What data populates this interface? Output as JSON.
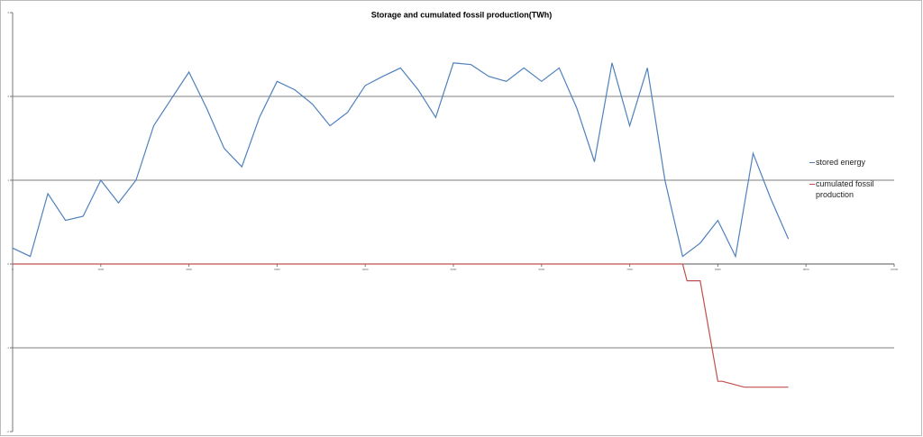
{
  "chart_data": {
    "type": "line",
    "title": "Storage and cumulated  fossil production(TWh)",
    "xlim": [
      0,
      10000
    ],
    "xticks": [
      0,
      1000,
      2000,
      3000,
      4000,
      5000,
      6000,
      7000,
      8000,
      9000,
      10000
    ],
    "ylim": [
      -2,
      3
    ],
    "yticks": [
      -2,
      -1,
      0,
      1,
      2,
      3
    ],
    "grid": true,
    "legend": "right",
    "series": [
      {
        "name": "stored energy",
        "color": "#4f81bd",
        "x": [
          0,
          200,
          400,
          600,
          800,
          1000,
          1200,
          1400,
          1600,
          1800,
          2000,
          2200,
          2400,
          2600,
          2800,
          3000,
          3200,
          3400,
          3600,
          3800,
          4000,
          4200,
          4400,
          4600,
          4800,
          5000,
          5200,
          5400,
          5600,
          5800,
          6000,
          6200,
          6400,
          6600,
          6800,
          7000,
          7200,
          7400,
          7600,
          7800,
          8000,
          8200,
          8400,
          8600,
          8800
        ],
        "values": [
          0.19,
          0.09,
          0.84,
          0.52,
          0.57,
          1.0,
          0.73,
          1.0,
          1.65,
          1.97,
          2.29,
          1.86,
          1.38,
          1.16,
          1.75,
          2.18,
          2.08,
          1.91,
          1.65,
          1.81,
          2.13,
          2.24,
          2.34,
          2.08,
          1.75,
          2.4,
          2.38,
          2.24,
          2.18,
          2.34,
          2.18,
          2.34,
          1.86,
          1.22,
          2.4,
          1.65,
          2.34,
          1.0,
          0.09,
          0.25,
          0.52,
          0.09,
          1.32,
          0.78,
          0.3
        ]
      },
      {
        "name": "cumulated fossil production",
        "color": "#c0504d",
        "x": [
          0,
          7600,
          7650,
          7800,
          8000,
          8050,
          8300,
          8600,
          8800
        ],
        "values": [
          0,
          0,
          -0.2,
          -0.2,
          -1.4,
          -1.4,
          -1.47,
          -1.47,
          -1.47
        ]
      }
    ]
  }
}
